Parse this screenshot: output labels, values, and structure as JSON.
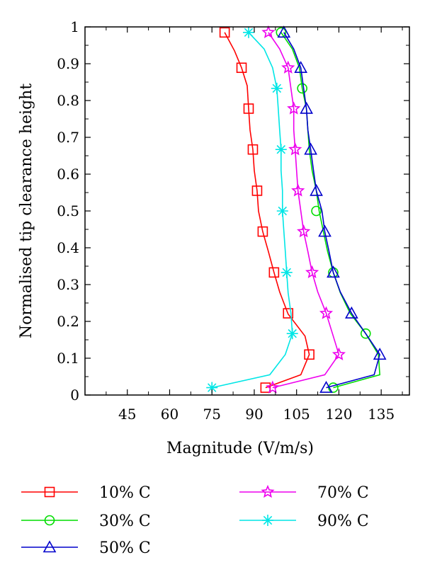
{
  "chart_data": {
    "type": "line",
    "title": "",
    "xlabel": "Magnitude (V/m/s)",
    "ylabel": "Normalised tip clearance height",
    "xlim": [
      30,
      145
    ],
    "ylim": [
      0,
      1
    ],
    "xticks": [
      45,
      60,
      75,
      90,
      105,
      120,
      135
    ],
    "xtick_labels": [
      "45",
      "60",
      "75",
      "90",
      "105",
      "120",
      "135"
    ],
    "yticks": [
      0,
      0.1,
      0.2,
      0.3,
      0.4,
      0.5,
      0.6,
      0.7,
      0.8,
      0.9,
      1
    ],
    "ytick_labels": [
      "0",
      "0.1",
      "0.2",
      "0.3",
      "0.4",
      "0.5",
      "0.6",
      "0.7",
      "0.8",
      "0.9",
      "1"
    ],
    "grid": false,
    "legend_position": "bottom",
    "series": [
      {
        "name": "10% C",
        "color": "#ff0000",
        "marker": "square",
        "line": [
          [
            94,
            0.02
          ],
          [
            106.5,
            0.055
          ],
          [
            109.5,
            0.11
          ],
          [
            108,
            0.16
          ],
          [
            102,
            0.22
          ],
          [
            99,
            0.28
          ],
          [
            97,
            0.333
          ],
          [
            95,
            0.39
          ],
          [
            93,
            0.444
          ],
          [
            91.5,
            0.5
          ],
          [
            91,
            0.555
          ],
          [
            90,
            0.61
          ],
          [
            89.5,
            0.667
          ],
          [
            88.5,
            0.72
          ],
          [
            88,
            0.778
          ],
          [
            87.5,
            0.84
          ],
          [
            85.5,
            0.889
          ],
          [
            83,
            0.935
          ],
          [
            79.5,
            0.985
          ]
        ],
        "markers": [
          [
            94,
            0.02
          ],
          [
            109.5,
            0.11
          ],
          [
            102,
            0.222
          ],
          [
            97,
            0.333
          ],
          [
            93,
            0.444
          ],
          [
            91,
            0.555
          ],
          [
            89.5,
            0.667
          ],
          [
            88,
            0.778
          ],
          [
            85.5,
            0.889
          ],
          [
            79.5,
            0.985
          ]
        ]
      },
      {
        "name": "30% C",
        "color": "#00dd00",
        "marker": "circle",
        "line": [
          [
            118,
            0.02
          ],
          [
            134.5,
            0.055
          ],
          [
            134,
            0.11
          ],
          [
            129.5,
            0.167
          ],
          [
            124,
            0.222
          ],
          [
            120.5,
            0.278
          ],
          [
            118,
            0.333
          ],
          [
            116,
            0.39
          ],
          [
            114.5,
            0.444
          ],
          [
            113,
            0.5
          ],
          [
            112,
            0.555
          ],
          [
            110.5,
            0.61
          ],
          [
            109.5,
            0.667
          ],
          [
            109,
            0.72
          ],
          [
            108.5,
            0.778
          ],
          [
            107,
            0.833
          ],
          [
            106,
            0.889
          ],
          [
            103.5,
            0.94
          ],
          [
            99.5,
            0.985
          ]
        ],
        "markers": [
          [
            118,
            0.02
          ],
          [
            129.5,
            0.167
          ],
          [
            118,
            0.333
          ],
          [
            112,
            0.5
          ],
          [
            107,
            0.833
          ],
          [
            99.5,
            0.985
          ]
        ]
      },
      {
        "name": "50% C",
        "color": "#0000cc",
        "marker": "triangle",
        "line": [
          [
            115.5,
            0.02
          ],
          [
            132.5,
            0.055
          ],
          [
            134.5,
            0.11
          ],
          [
            129.5,
            0.167
          ],
          [
            124.5,
            0.222
          ],
          [
            120.5,
            0.28
          ],
          [
            118,
            0.333
          ],
          [
            116.5,
            0.39
          ],
          [
            115,
            0.444
          ],
          [
            114,
            0.5
          ],
          [
            112,
            0.555
          ],
          [
            111,
            0.61
          ],
          [
            110,
            0.667
          ],
          [
            109,
            0.72
          ],
          [
            108.5,
            0.778
          ],
          [
            107.5,
            0.833
          ],
          [
            106.5,
            0.889
          ],
          [
            104,
            0.94
          ],
          [
            100.5,
            0.985
          ]
        ],
        "markers": [
          [
            115.5,
            0.02
          ],
          [
            134.5,
            0.11
          ],
          [
            124.5,
            0.222
          ],
          [
            118,
            0.333
          ],
          [
            115,
            0.444
          ],
          [
            112,
            0.555
          ],
          [
            110,
            0.667
          ],
          [
            108.5,
            0.778
          ],
          [
            106.5,
            0.889
          ],
          [
            100.5,
            0.985
          ]
        ]
      },
      {
        "name": "70% C",
        "color": "#ee00ee",
        "marker": "star",
        "line": [
          [
            96.5,
            0.02
          ],
          [
            115,
            0.055
          ],
          [
            120,
            0.11
          ],
          [
            118,
            0.16
          ],
          [
            115.5,
            0.222
          ],
          [
            112.5,
            0.28
          ],
          [
            110.5,
            0.333
          ],
          [
            109,
            0.39
          ],
          [
            107.5,
            0.444
          ],
          [
            106.5,
            0.5
          ],
          [
            105.5,
            0.555
          ],
          [
            105,
            0.61
          ],
          [
            104.5,
            0.667
          ],
          [
            104,
            0.72
          ],
          [
            104,
            0.778
          ],
          [
            103,
            0.833
          ],
          [
            102,
            0.889
          ],
          [
            99,
            0.94
          ],
          [
            95,
            0.985
          ]
        ],
        "markers": [
          [
            96.5,
            0.02
          ],
          [
            120,
            0.11
          ],
          [
            115.5,
            0.222
          ],
          [
            110.5,
            0.333
          ],
          [
            107.5,
            0.444
          ],
          [
            105.5,
            0.555
          ],
          [
            104.5,
            0.667
          ],
          [
            104,
            0.778
          ],
          [
            102,
            0.889
          ],
          [
            95,
            0.985
          ]
        ]
      },
      {
        "name": "90% C",
        "color": "#00e6e6",
        "marker": "asterisk",
        "line": [
          [
            75,
            0.02
          ],
          [
            95.5,
            0.055
          ],
          [
            101,
            0.11
          ],
          [
            103.5,
            0.167
          ],
          [
            103,
            0.222
          ],
          [
            102,
            0.278
          ],
          [
            101.5,
            0.333
          ],
          [
            101,
            0.39
          ],
          [
            100.5,
            0.444
          ],
          [
            100,
            0.5
          ],
          [
            100,
            0.555
          ],
          [
            99.5,
            0.61
          ],
          [
            99.5,
            0.667
          ],
          [
            99,
            0.72
          ],
          [
            98.5,
            0.778
          ],
          [
            98,
            0.833
          ],
          [
            96.5,
            0.889
          ],
          [
            93.5,
            0.94
          ],
          [
            88,
            0.985
          ]
        ],
        "markers": [
          [
            75,
            0.02
          ],
          [
            103.5,
            0.167
          ],
          [
            101.5,
            0.333
          ],
          [
            100,
            0.5
          ],
          [
            99.5,
            0.667
          ],
          [
            98,
            0.833
          ],
          [
            88,
            0.985
          ]
        ]
      }
    ]
  }
}
